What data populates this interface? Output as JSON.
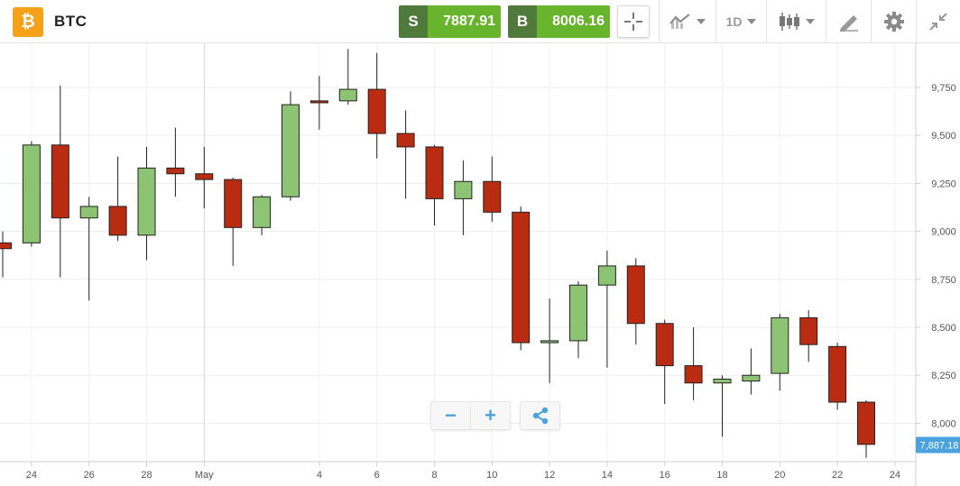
{
  "header": {
    "logo_glyph": "₿",
    "asset": "BTC",
    "sell": {
      "tag": "S",
      "price": "7887.91"
    },
    "buy": {
      "tag": "B",
      "price": "8006.16"
    },
    "interval": "1D"
  },
  "icons": {
    "crosshair": "crosshair-icon",
    "chart_type": "line-chart-icon",
    "candles": "candlestick-icon",
    "draw": "draw-icon",
    "settings": "gear-icon",
    "collapse": "collapse-icon",
    "share": "share-icon"
  },
  "zoom": {
    "minus": "−",
    "plus": "+"
  },
  "colors": {
    "up": "#8dc473",
    "down": "#b92c12",
    "sell_tag": "#4f7a3b",
    "price_bg": "#68b42c",
    "last_price": "#4aa3df",
    "logo": "#f7a11a"
  },
  "chart_data": {
    "type": "candlestick",
    "y_axis": {
      "min": 7800,
      "max": 9980,
      "ticks": [
        "9,750",
        "9,500",
        "9,250",
        "9,000",
        "8,750",
        "8,500",
        "8,250",
        "8,000"
      ],
      "tick_values": [
        9750,
        9500,
        9250,
        9000,
        8750,
        8500,
        8250,
        8000
      ],
      "position": "right"
    },
    "x_axis": {
      "labels": [
        "24",
        "26",
        "28",
        "May",
        "4",
        "6",
        "8",
        "10",
        "12",
        "14",
        "16",
        "18",
        "20",
        "22",
        "24"
      ],
      "label_index": [
        1,
        3,
        5,
        7,
        11,
        13,
        15,
        17,
        19,
        21,
        23,
        25,
        27,
        29,
        31
      ]
    },
    "last_price": {
      "value": 7887.18,
      "label": "7,887.18"
    },
    "grid": true,
    "candles": [
      {
        "o": 8940,
        "h": 9000,
        "l": 8760,
        "c": 8910
      },
      {
        "o": 8940,
        "h": 9470,
        "l": 8920,
        "c": 9450
      },
      {
        "o": 9450,
        "h": 9760,
        "l": 8760,
        "c": 9070
      },
      {
        "o": 9070,
        "h": 9180,
        "l": 8640,
        "c": 9130
      },
      {
        "o": 9130,
        "h": 9390,
        "l": 8950,
        "c": 8980
      },
      {
        "o": 8980,
        "h": 9440,
        "l": 8850,
        "c": 9330
      },
      {
        "o": 9330,
        "h": 9540,
        "l": 9180,
        "c": 9300
      },
      {
        "o": 9300,
        "h": 9440,
        "l": 9120,
        "c": 9270
      },
      {
        "o": 9270,
        "h": 9280,
        "l": 8820,
        "c": 9020
      },
      {
        "o": 9020,
        "h": 9190,
        "l": 8980,
        "c": 9180
      },
      {
        "o": 9180,
        "h": 9730,
        "l": 9160,
        "c": 9660
      },
      {
        "o": 9680,
        "h": 9810,
        "l": 9530,
        "c": 9670
      },
      {
        "o": 9680,
        "h": 9950,
        "l": 9660,
        "c": 9740
      },
      {
        "o": 9740,
        "h": 9930,
        "l": 9380,
        "c": 9510
      },
      {
        "o": 9510,
        "h": 9630,
        "l": 9170,
        "c": 9440
      },
      {
        "o": 9440,
        "h": 9450,
        "l": 9030,
        "c": 9170
      },
      {
        "o": 9170,
        "h": 9370,
        "l": 8980,
        "c": 9260
      },
      {
        "o": 9260,
        "h": 9390,
        "l": 9050,
        "c": 9100
      },
      {
        "o": 9100,
        "h": 9130,
        "l": 8380,
        "c": 8420
      },
      {
        "o": 8420,
        "h": 8650,
        "l": 8210,
        "c": 8430
      },
      {
        "o": 8430,
        "h": 8740,
        "l": 8340,
        "c": 8720
      },
      {
        "o": 8720,
        "h": 8900,
        "l": 8290,
        "c": 8820
      },
      {
        "o": 8820,
        "h": 8860,
        "l": 8410,
        "c": 8520
      },
      {
        "o": 8520,
        "h": 8540,
        "l": 8100,
        "c": 8300
      },
      {
        "o": 8300,
        "h": 8500,
        "l": 8120,
        "c": 8210
      },
      {
        "o": 8210,
        "h": 8250,
        "l": 7930,
        "c": 8230
      },
      {
        "o": 8220,
        "h": 8390,
        "l": 8150,
        "c": 8250
      },
      {
        "o": 8260,
        "h": 8570,
        "l": 8170,
        "c": 8550
      },
      {
        "o": 8550,
        "h": 8590,
        "l": 8320,
        "c": 8410
      },
      {
        "o": 8400,
        "h": 8420,
        "l": 8070,
        "c": 8110
      },
      {
        "o": 8110,
        "h": 8120,
        "l": 7820,
        "c": 7890
      }
    ]
  }
}
